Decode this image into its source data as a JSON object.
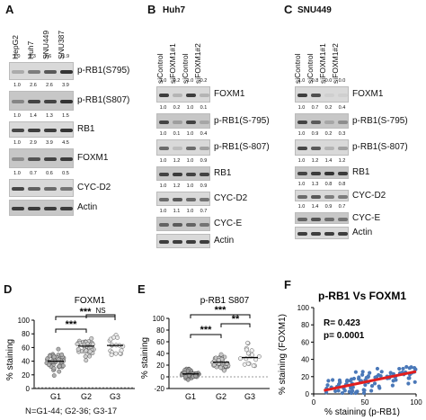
{
  "panelA": {
    "letter": "A",
    "lanes": [
      "HepG2",
      "Huh7",
      "SNU449",
      "SNU387"
    ],
    "rows": [
      {
        "quant": [
          "1.0",
          "3.3",
          "5.6",
          "11.9"
        ],
        "label": "p-RB1(S795)"
      },
      {
        "quant": [
          "1.0",
          "2.6",
          "2.6",
          "3.9"
        ],
        "label": "p-RB1(S807)"
      },
      {
        "quant": [
          "1.0",
          "1.4",
          "1.3",
          "1.5"
        ],
        "label": "RB1"
      },
      {
        "quant": [
          "1.0",
          "2.9",
          "3.9",
          "4.5"
        ],
        "label": "FOXM1"
      },
      {
        "quant": [
          "1.0",
          "0.7",
          "0.6",
          "0.5"
        ],
        "label": "CYC-D2"
      },
      {
        "quant": [],
        "label": "Actin"
      }
    ]
  },
  "panelB": {
    "letter": "B",
    "title": "Huh7",
    "lanes": [
      "siControl",
      "siFOXM1#1",
      "siControl",
      "siFOXM1#2"
    ],
    "rows": [
      {
        "quant": [
          "1.0",
          "0.2",
          "1.0",
          "0.2"
        ],
        "label": "FOXM1"
      },
      {
        "quant": [
          "1.0",
          "0.2",
          "1.0",
          "0.1"
        ],
        "label": "p-RB1(S-795)"
      },
      {
        "quant": [
          "1.0",
          "0.1",
          "1.0",
          "0.4"
        ],
        "label": "p-RB1(S-807)"
      },
      {
        "quant": [
          "1.0",
          "1.2",
          "1.0",
          "0.9"
        ],
        "label": "RB1"
      },
      {
        "quant": [
          "1.0",
          "1.2",
          "1.0",
          "0.9"
        ],
        "label": "CYC-D2"
      },
      {
        "quant": [
          "1.0",
          "1.1",
          "1.0",
          "0.7"
        ],
        "label": "CYC-E"
      },
      {
        "quant": [],
        "label": "Actin"
      }
    ]
  },
  "panelC": {
    "letter": "C",
    "title": "SNU449",
    "lanes": [
      "siControl",
      "siControl",
      "siFOXM1#1",
      "siFOXM1#2"
    ],
    "rows": [
      {
        "quant": [
          "1.0",
          "0.8",
          "0.0",
          "0.0"
        ],
        "label": "FOXM1"
      },
      {
        "quant": [
          "1.0",
          "0.7",
          "0.2",
          "0.4"
        ],
        "label": "p-RB1(S-795)"
      },
      {
        "quant": [
          "1.0",
          "0.9",
          "0.2",
          "0.3"
        ],
        "label": "p-RB1(S-807)"
      },
      {
        "quant": [
          "1.0",
          "1.2",
          "1.4",
          "1.2"
        ],
        "label": "RB1"
      },
      {
        "quant": [
          "1.0",
          "1.3",
          "0.8",
          "0.8"
        ],
        "label": "CYC-D2"
      },
      {
        "quant": [
          "1.0",
          "1.4",
          "0.9",
          "0.7"
        ],
        "label": "CYC-E"
      },
      {
        "quant": [],
        "label": "Actin"
      }
    ]
  },
  "panelD": {
    "letter": "D",
    "footer": "N=G1-44; G2-36; G3-17"
  },
  "panelE": {
    "letter": "E"
  },
  "panelF": {
    "letter": "F"
  },
  "chart_data": [
    {
      "type": "scatter",
      "title": "FOXM1",
      "ylabel": "% staining",
      "categories": [
        "G1",
        "G2",
        "G3"
      ],
      "yticks": [
        "0",
        "20",
        "40",
        "60",
        "80",
        "100"
      ],
      "ylim": [
        0,
        100
      ],
      "annotations": [
        "***",
        "***",
        "NS"
      ],
      "means": [
        40,
        62,
        63
      ],
      "sd": [
        10,
        12,
        11
      ]
    },
    {
      "type": "scatter",
      "title": "p-RB1 S807",
      "ylabel": "% staining",
      "categories": [
        "G1",
        "G2",
        "G3"
      ],
      "yticks": [
        "-20",
        "0",
        "20",
        "40",
        "60",
        "80",
        "100"
      ],
      "ylim": [
        -20,
        100
      ],
      "annotations": [
        "***",
        "***",
        "**"
      ],
      "means": [
        5,
        25,
        33
      ],
      "sd": [
        5,
        8,
        14
      ]
    },
    {
      "type": "scatter",
      "title": "p-RB1 Vs FOXM1",
      "xlabel": "% staining (p-RB1)",
      "ylabel": "% staining (FOXM1)",
      "xticks": [
        "0",
        "50",
        "100"
      ],
      "yticks": [
        "0",
        "20",
        "40",
        "60",
        "80",
        "100"
      ],
      "xlim": [
        0,
        100
      ],
      "ylim": [
        0,
        100
      ],
      "annotations": [
        "R= 0.423",
        "p= 0.0001"
      ],
      "fit": {
        "x": [
          10,
          100
        ],
        "y": [
          4,
          26
        ]
      }
    }
  ]
}
